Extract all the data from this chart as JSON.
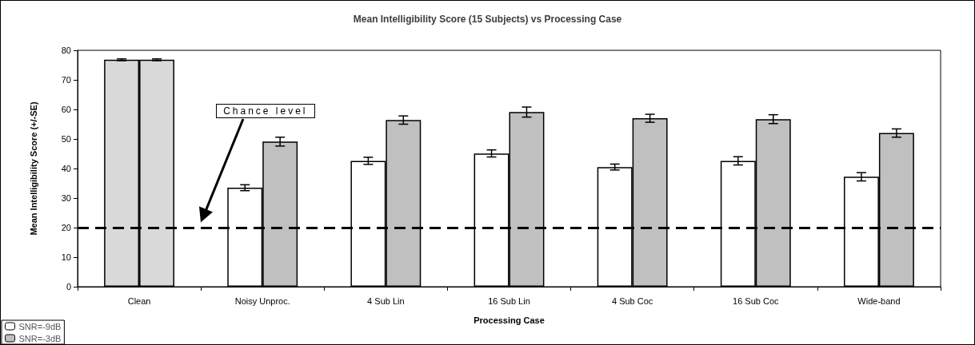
{
  "chart_data": {
    "type": "bar",
    "title": "Mean Intelligibility Score (15 Subjects) vs Processing Case",
    "xlabel": "Processing Case",
    "ylabel": "Mean Intelligibility Score (+/-SE)",
    "categories": [
      "Clean",
      "Noisy Unproc.",
      "4 Sub Lin",
      "16 Sub Lin",
      "4 Sub Coc",
      "16 Sub Coc",
      "Wide-band"
    ],
    "series": [
      {
        "name": "SNR=-9dB",
        "color": "#ffffff",
        "colors": [
          "#d9d9d9",
          "#ffffff",
          "#ffffff",
          "#ffffff",
          "#ffffff",
          "#ffffff",
          "#ffffff"
        ],
        "values": [
          76.8,
          33.5,
          42.6,
          45.1,
          40.5,
          42.6,
          37.2
        ],
        "errors": [
          0.3,
          1.0,
          1.2,
          1.2,
          1.0,
          1.4,
          1.4
        ]
      },
      {
        "name": "SNR=-3dB",
        "color": "#c0c0c0",
        "colors": [
          "#d9d9d9",
          "#c0c0c0",
          "#c0c0c0",
          "#c0c0c0",
          "#c0c0c0",
          "#c0c0c0",
          "#c0c0c0"
        ],
        "values": [
          76.8,
          49.1,
          56.4,
          59.1,
          57.0,
          56.7,
          52.0
        ],
        "errors": [
          0.3,
          1.5,
          1.4,
          1.7,
          1.35,
          1.5,
          1.4
        ]
      }
    ],
    "ylim": [
      0,
      80
    ],
    "yticks": [
      0,
      10,
      20,
      30,
      40,
      50,
      60,
      70,
      80
    ],
    "ref_lines": [
      {
        "axis": "y",
        "value": 20,
        "color": "#000000",
        "line_style": "dashed"
      }
    ],
    "annotations": [
      "Chance level"
    ],
    "grid": false,
    "legend": "bottom left"
  }
}
